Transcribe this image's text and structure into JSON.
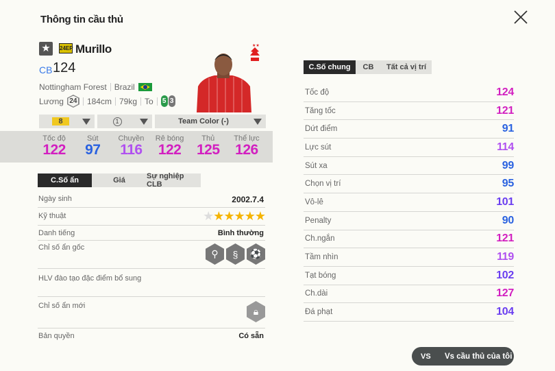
{
  "title": "Thông tin cầu thủ",
  "player": {
    "name": "Murillo",
    "season_badge": "24EP",
    "position": "CB",
    "overall": "124",
    "club": "Nottingham Forest",
    "nation": "Brazil",
    "salary_label": "Lương",
    "salary": "24",
    "height": "184cm",
    "weight": "79kg",
    "body": "To",
    "foot_left": "5",
    "foot_right": "3"
  },
  "selectors": {
    "upgrade": "8",
    "level": "1",
    "team_color": "Team Color (-)"
  },
  "summary": [
    {
      "label": "Tốc độ",
      "value": "122"
    },
    {
      "label": "Sút",
      "value": "97"
    },
    {
      "label": "Chuyền",
      "value": "116"
    },
    {
      "label": "Rê bóng",
      "value": "122"
    },
    {
      "label": "Thủ",
      "value": "125"
    },
    {
      "label": "Thể lực",
      "value": "126"
    }
  ],
  "left_tabs": [
    "C.Số ẩn",
    "Giá",
    "Sự nghiệp CLB"
  ],
  "info": {
    "birth_label": "Ngày sinh",
    "birth": "2002.7.4",
    "skill_label": "Kỹ thuật",
    "skill_stars": 5,
    "skill_max": 6,
    "rep_label": "Danh tiếng",
    "rep": "Bình thường",
    "traits_label": "Chỉ số ẩn gốc",
    "coach_label": "HLV đào tạo đặc điểm bổ sung",
    "new_traits_label": "Chỉ số ẩn mới",
    "license_label": "Bản quyền",
    "license": "Có sẵn"
  },
  "right_tabs": [
    "C.Số chung",
    "CB",
    "Tất cả vị trí"
  ],
  "stats": [
    {
      "label": "Tốc độ",
      "value": 124
    },
    {
      "label": "Tăng tốc",
      "value": 121
    },
    {
      "label": "Dứt điểm",
      "value": 91
    },
    {
      "label": "Lực sút",
      "value": 114
    },
    {
      "label": "Sút xa",
      "value": 99
    },
    {
      "label": "Chọn vị trí",
      "value": 95
    },
    {
      "label": "Vô-lê",
      "value": 101
    },
    {
      "label": "Penalty",
      "value": 90
    },
    {
      "label": "Ch.ngắn",
      "value": 121
    },
    {
      "label": "Tầm nhìn",
      "value": 119
    },
    {
      "label": "Tạt bóng",
      "value": 102
    },
    {
      "label": "Ch.dài",
      "value": 127
    },
    {
      "label": "Đá phạt",
      "value": 104
    }
  ],
  "compare_button": "Vs cầu thủ của tôi",
  "compare_icon": "VS",
  "colors": {
    "tier120": "#d21fc0",
    "tier110": "#b050f0",
    "tier100": "#6a3ef0",
    "tier90": "#2a62e0",
    "accent_dark": "#2a2a2a",
    "foot_left": "#2a9a4a",
    "foot_right": "#777777",
    "star": "#f5b400"
  }
}
